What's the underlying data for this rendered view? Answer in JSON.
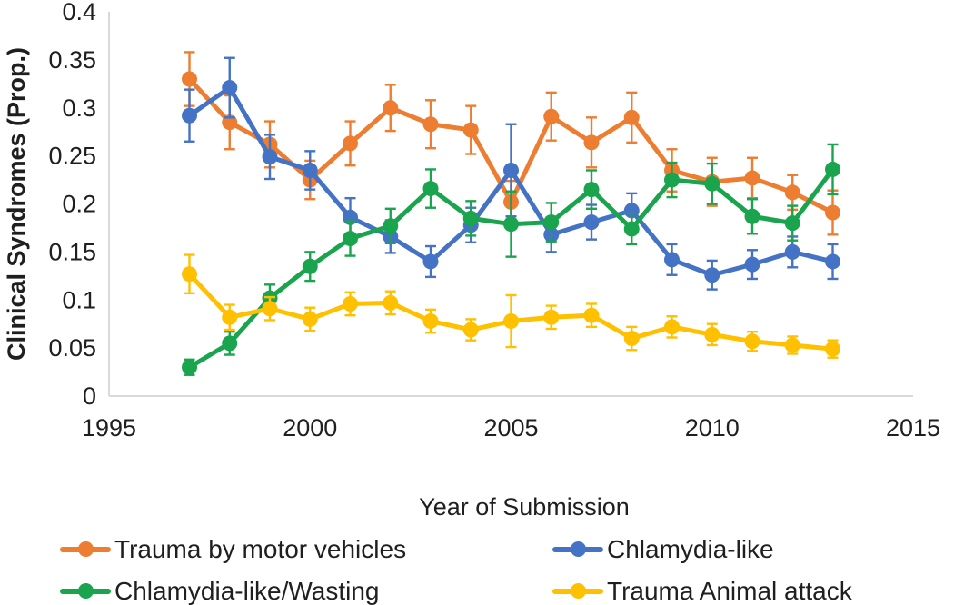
{
  "chart_data": {
    "type": "line",
    "title": "",
    "xlabel": "Year of Submission",
    "ylabel": "Clinical Syndromes (Prop.)",
    "xlim": [
      1995,
      2015
    ],
    "ylim": [
      0,
      0.4
    ],
    "x_ticks": [
      {
        "value": 1995,
        "label": "1995"
      },
      {
        "value": 2000,
        "label": "2000"
      },
      {
        "value": 2005,
        "label": "2005"
      },
      {
        "value": 2010,
        "label": "2010"
      },
      {
        "value": 2015,
        "label": "2015"
      }
    ],
    "y_ticks": [
      {
        "value": 0,
        "label": "0"
      },
      {
        "value": 0.05,
        "label": "0.05"
      },
      {
        "value": 0.1,
        "label": "0.1"
      },
      {
        "value": 0.15,
        "label": "0.15"
      },
      {
        "value": 0.2,
        "label": "0.2"
      },
      {
        "value": 0.25,
        "label": "0.25"
      },
      {
        "value": 0.3,
        "label": "0.3"
      },
      {
        "value": 0.35,
        "label": "0.35"
      },
      {
        "value": 0.4,
        "label": "0.4"
      }
    ],
    "x": [
      1997,
      1998,
      1999,
      2000,
      2001,
      2002,
      2003,
      2004,
      2005,
      2006,
      2007,
      2008,
      2009,
      2010,
      2011,
      2012,
      2013
    ],
    "has_error_bars": true,
    "grid": "off",
    "legend_position": "bottom",
    "axis_color": "#d9d9d9",
    "text_color": "#1f1f1f",
    "series": [
      {
        "name": "Trauma by motor vehicles",
        "color": "#ED7D31",
        "values": [
          0.33,
          0.285,
          0.262,
          0.225,
          0.263,
          0.3,
          0.283,
          0.277,
          0.202,
          0.291,
          0.264,
          0.29,
          0.235,
          0.223,
          0.227,
          0.212,
          0.191
        ],
        "errors": [
          0.028,
          0.028,
          0.024,
          0.02,
          0.023,
          0.024,
          0.025,
          0.025,
          0.022,
          0.025,
          0.026,
          0.026,
          0.022,
          0.025,
          0.021,
          0.018,
          0.023
        ]
      },
      {
        "name": "Chlamydia-like",
        "color": "#4472C4",
        "values": [
          0.292,
          0.321,
          0.249,
          0.235,
          0.186,
          0.166,
          0.14,
          0.178,
          0.235,
          0.168,
          0.181,
          0.193,
          0.142,
          0.126,
          0.137,
          0.15,
          0.14
        ],
        "errors": [
          0.027,
          0.031,
          0.023,
          0.02,
          0.02,
          0.017,
          0.016,
          0.018,
          0.048,
          0.018,
          0.018,
          0.018,
          0.016,
          0.015,
          0.015,
          0.016,
          0.018
        ]
      },
      {
        "name": "Chlamydia-like/Wasting",
        "color": "#1AA44E",
        "values": [
          0.03,
          0.055,
          0.102,
          0.135,
          0.164,
          0.177,
          0.216,
          0.185,
          0.179,
          0.181,
          0.215,
          0.174,
          0.225,
          0.221,
          0.187,
          0.18,
          0.236
        ],
        "errors": [
          0.008,
          0.012,
          0.014,
          0.015,
          0.018,
          0.018,
          0.02,
          0.018,
          0.034,
          0.02,
          0.02,
          0.016,
          0.018,
          0.021,
          0.018,
          0.018,
          0.026
        ]
      },
      {
        "name": "Trauma Animal attack",
        "color": "#FFC000",
        "values": [
          0.127,
          0.082,
          0.091,
          0.08,
          0.096,
          0.097,
          0.078,
          0.069,
          0.078,
          0.082,
          0.084,
          0.06,
          0.072,
          0.064,
          0.057,
          0.053,
          0.049
        ],
        "errors": [
          0.02,
          0.013,
          0.012,
          0.012,
          0.012,
          0.012,
          0.012,
          0.011,
          0.027,
          0.012,
          0.012,
          0.012,
          0.011,
          0.011,
          0.01,
          0.009,
          0.009
        ]
      }
    ]
  }
}
